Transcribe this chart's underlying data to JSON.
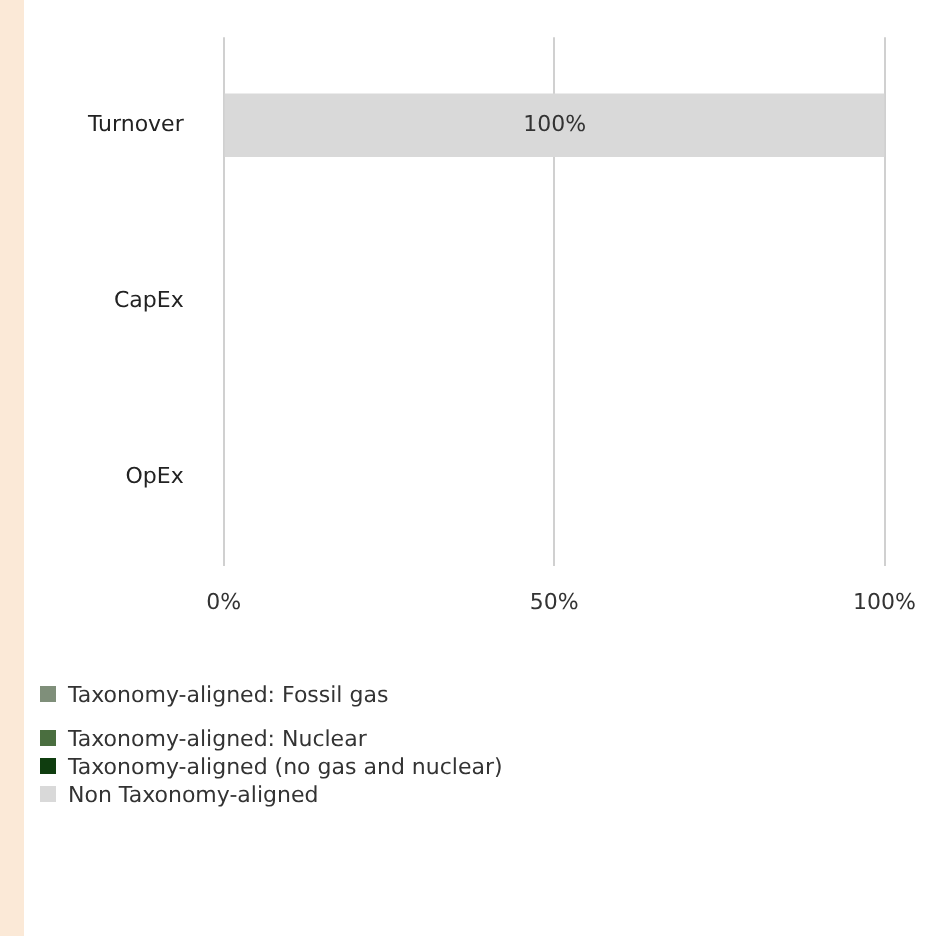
{
  "chart_data": {
    "type": "bar",
    "orientation": "horizontal",
    "stacked": true,
    "categories": [
      "Turnover",
      "CapEx",
      "OpEx"
    ],
    "series": [
      {
        "name": "Taxonomy-aligned: Fossil gas",
        "color": "#7f8f7a",
        "values": [
          0,
          0,
          0
        ]
      },
      {
        "name": "Taxonomy-aligned: Nuclear",
        "color": "#4a6e3f",
        "values": [
          0,
          0,
          0
        ]
      },
      {
        "name": "Taxonomy-aligned (no gas and nuclear)",
        "color": "#0f3d0f",
        "values": [
          0,
          0,
          0
        ]
      },
      {
        "name": "Non Taxonomy-aligned",
        "color": "#d9d9d9",
        "values": [
          100,
          0,
          0
        ],
        "value_labels": [
          "100%",
          null,
          null
        ]
      }
    ],
    "xlim": [
      0,
      100
    ],
    "xticks": [
      {
        "value": 0,
        "label": "0%"
      },
      {
        "value": 50,
        "label": "50%"
      },
      {
        "value": 100,
        "label": "100%"
      }
    ],
    "grid": "x",
    "legend": "bottom"
  }
}
